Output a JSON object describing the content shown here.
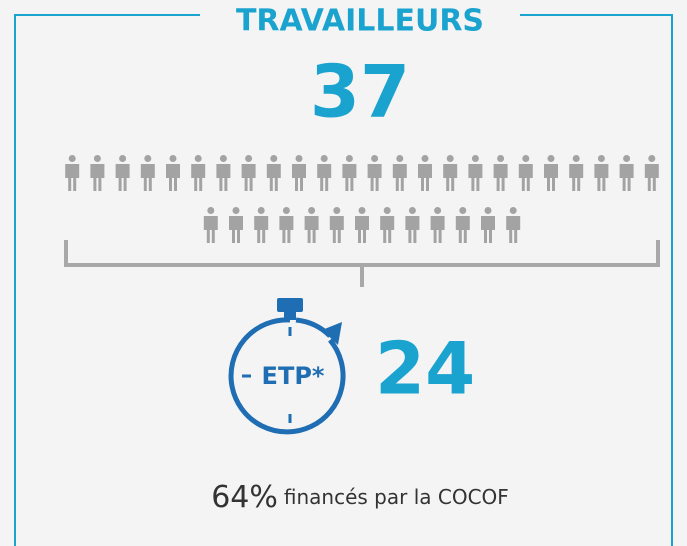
{
  "title": "TRAVAILLEURS",
  "workers": 37,
  "etp_label": "ETP*",
  "etp": 24,
  "funding": {
    "percent": "64%",
    "text": "financés par la COCOF"
  }
}
